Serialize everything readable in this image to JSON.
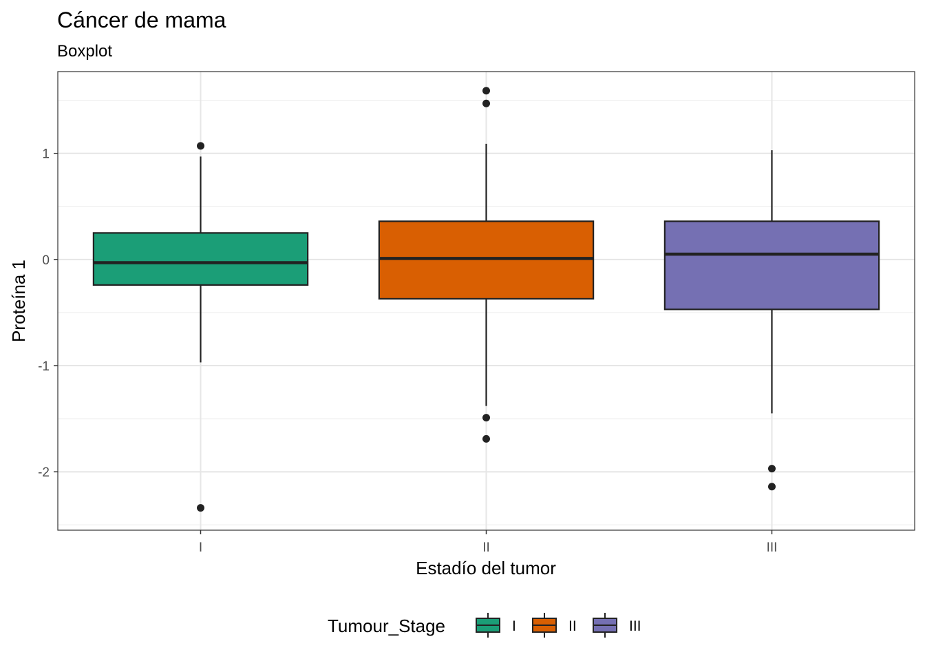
{
  "chart_data": {
    "type": "boxplot",
    "title": "Cáncer de mama",
    "subtitle": "Boxplot",
    "xlabel": "Estadío del tumor",
    "ylabel": "Proteína 1",
    "categories": [
      "I",
      "II",
      "III"
    ],
    "ylim": [
      -2.55,
      1.77
    ],
    "yticks": [
      "1",
      "0",
      "-1",
      "-2"
    ],
    "ytick_values": [
      1,
      0,
      -1,
      -2
    ],
    "grid": true,
    "legend": {
      "title": "Tumour_Stage",
      "position": "bottom",
      "entries": [
        "I",
        "II",
        "III"
      ]
    },
    "boxes": [
      {
        "category": "I",
        "color": "#1B9E77",
        "whisker_low": -0.97,
        "q1": -0.24,
        "median": -0.03,
        "q3": 0.25,
        "whisker_high": 0.97,
        "outliers": [
          1.07,
          -2.34
        ]
      },
      {
        "category": "II",
        "color": "#D95F02",
        "whisker_low": -1.38,
        "q1": -0.37,
        "median": 0.01,
        "q3": 0.36,
        "whisker_high": 1.09,
        "outliers": [
          1.59,
          1.47,
          -1.49,
          -1.69
        ]
      },
      {
        "category": "III",
        "color": "#7570B3",
        "whisker_low": -1.45,
        "q1": -0.47,
        "median": 0.05,
        "q3": 0.36,
        "whisker_high": 1.03,
        "outliers": [
          -1.97,
          -2.14
        ]
      }
    ]
  }
}
